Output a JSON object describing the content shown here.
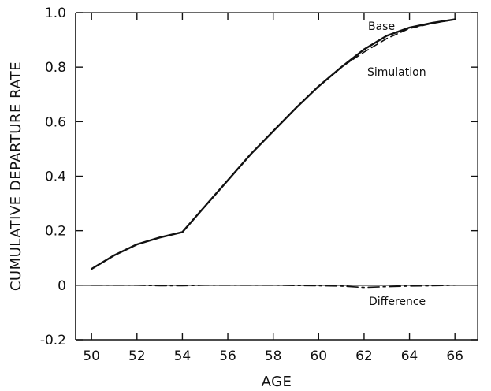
{
  "chart_data": {
    "type": "line",
    "xlabel": "AGE",
    "ylabel": "CUMULATIVE DEPARTURE RATE",
    "xlim": [
      49.3,
      67.0
    ],
    "ylim": [
      -0.2,
      1.0
    ],
    "x_ticks": [
      "50",
      "52",
      "54",
      "56",
      "58",
      "60",
      "62",
      "64",
      "66"
    ],
    "y_ticks": [
      "-0.2",
      "0",
      "0.2",
      "0.4",
      "0.6",
      "0.8",
      "1.0"
    ],
    "x": [
      50,
      51,
      52,
      53,
      54,
      55,
      56,
      57,
      58,
      59,
      60,
      61,
      62,
      63,
      64,
      65,
      66
    ],
    "series": [
      {
        "name": "Base",
        "style": "solid",
        "values": [
          0.06,
          0.11,
          0.15,
          0.175,
          0.195,
          0.29,
          0.385,
          0.48,
          0.565,
          0.65,
          0.73,
          0.8,
          0.865,
          0.915,
          0.945,
          0.962,
          0.975
        ]
      },
      {
        "name": "Simulation",
        "style": "dashed",
        "values": [
          0.06,
          0.11,
          0.15,
          0.175,
          0.195,
          0.29,
          0.385,
          0.48,
          0.565,
          0.65,
          0.73,
          0.8,
          0.855,
          0.905,
          0.942,
          0.96,
          0.975
        ]
      },
      {
        "name": "Difference",
        "style": "dashdot",
        "values": [
          0,
          0,
          0,
          -0.002,
          -0.002,
          0,
          0,
          0,
          0,
          -0.001,
          -0.002,
          -0.003,
          -0.008,
          -0.005,
          -0.003,
          -0.002,
          0
        ]
      }
    ],
    "annotations": [
      {
        "text": "Base",
        "series": "Base"
      },
      {
        "text": "Simulation",
        "series": "Simulation"
      },
      {
        "text": "Difference",
        "series": "Difference"
      }
    ],
    "zero_line": true,
    "grid": false,
    "legend": "none"
  },
  "colors": {
    "line": "#111111",
    "axis": "#111111"
  }
}
